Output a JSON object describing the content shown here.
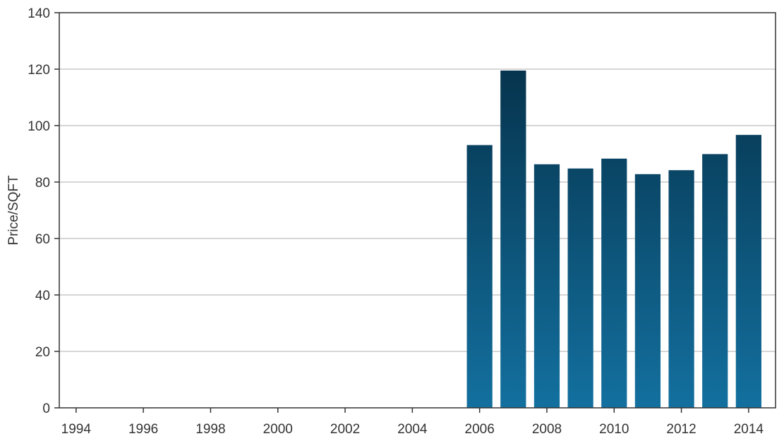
{
  "chart_data": {
    "type": "bar",
    "categories": [
      "2006",
      "2007",
      "2008",
      "2009",
      "2010",
      "2011",
      "2012",
      "2013",
      "2014"
    ],
    "series": [
      {
        "values": [
          93.1,
          119.5,
          86.3,
          84.8,
          88.3,
          82.8,
          84.2,
          89.9,
          96.7
        ]
      }
    ],
    "xlabel": "",
    "ylabel": "Price/SQFT",
    "xlim": [
      1993.5,
      2014.8
    ],
    "ylim": [
      0,
      140
    ],
    "x_ticks": [
      "1994",
      "1996",
      "1998",
      "2000",
      "2002",
      "2004",
      "2006",
      "2008",
      "2010",
      "2012",
      "2014"
    ],
    "y_ticks": [
      "0",
      "20",
      "40",
      "60",
      "80",
      "100",
      "120",
      "140"
    ],
    "grid": "horizontal",
    "legend": "none",
    "colors": {
      "bar_top": "#042a40",
      "bar_bottom": "#13709f",
      "grid": "#c8c8c8",
      "axis": "#333333"
    }
  }
}
